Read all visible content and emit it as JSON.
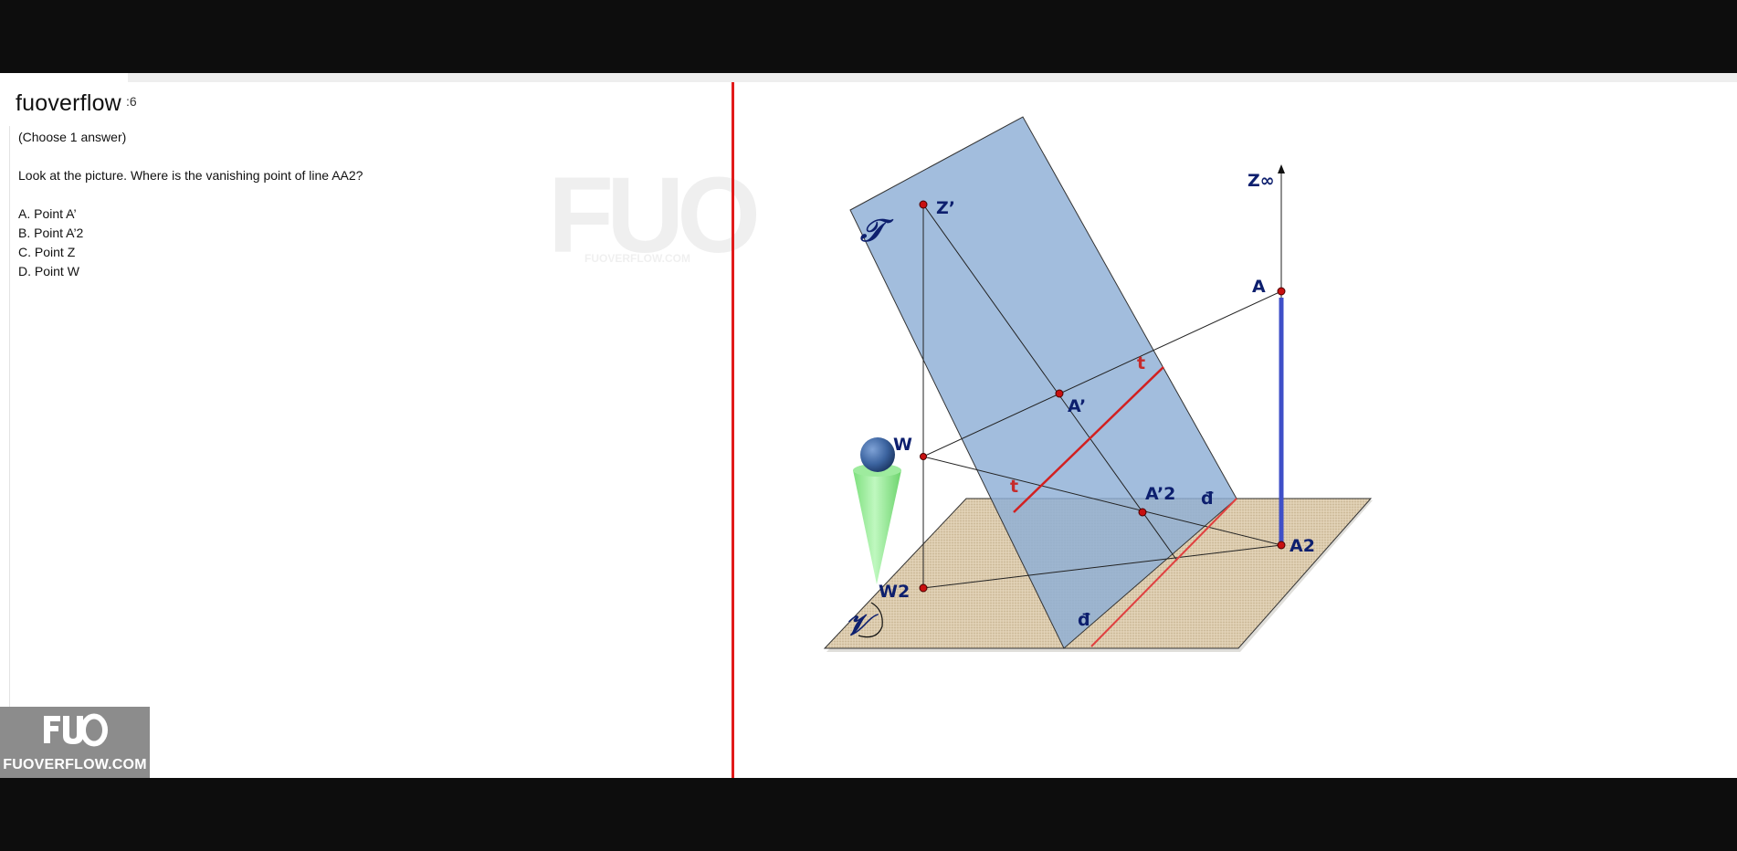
{
  "app": {
    "title": "fuoverflow",
    "title_suffix": ":6"
  },
  "question": {
    "type": "(Choose 1 answer)",
    "prompt": "Look at the picture. Where is the vanishing point of line AA2?",
    "options": [
      {
        "letter": "A",
        "text": "A. Point A’"
      },
      {
        "letter": "B",
        "text": "B. Point A’2"
      },
      {
        "letter": "C",
        "text": "C. Point Z"
      },
      {
        "letter": "D",
        "text": "D. Point W"
      }
    ]
  },
  "watermark": {
    "letters": "FUO",
    "text": "FUOVERFLOW.COM"
  },
  "logo": {
    "mark": "FUO",
    "text": "FUOVERFLOW.COM"
  },
  "diagram": {
    "labels": {
      "z_inf": "Z∞",
      "z_prime": "Z’",
      "a": "A",
      "a_prime": "A’",
      "a_prime_2": "A’2",
      "a2": "A2",
      "w": "W",
      "w2": "W2",
      "t_top": "t",
      "t_bottom": "t",
      "d_right": "đ",
      "d_bottom": "đ",
      "picture_plane_symbol": "𝒯",
      "ground_plane_symbol": "𝒱"
    },
    "colors": {
      "picture_plane": "#8eaed6",
      "ground_plane": "#dccbae",
      "red_lines": "#d22020",
      "blue_line": "#3f4fc8",
      "point": "#c81010",
      "label": "#0d1f6e",
      "cone": "#8ee88e",
      "eye_sphere": "#3c64a0"
    }
  }
}
